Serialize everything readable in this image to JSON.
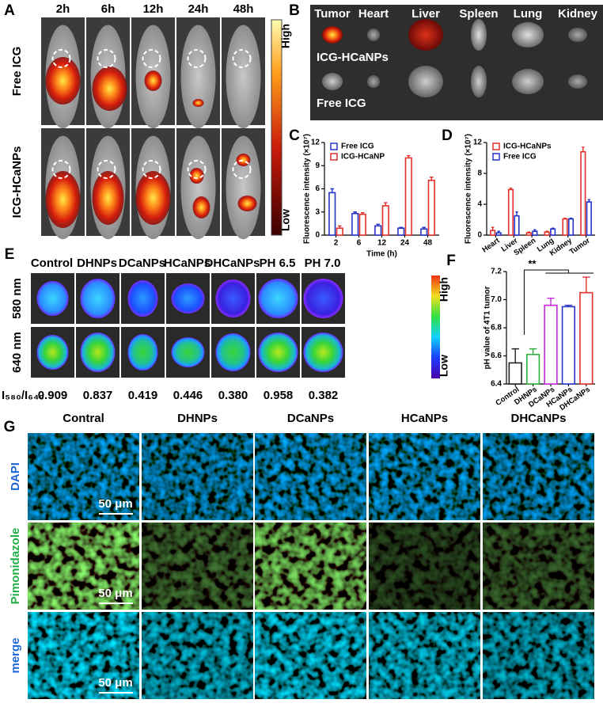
{
  "panel_labels": [
    "A",
    "B",
    "C",
    "D",
    "E",
    "F",
    "G"
  ],
  "panel_a": {
    "time_points": [
      "2h",
      "6h",
      "12h",
      "24h",
      "48h"
    ],
    "rows": [
      "Free ICG",
      "ICG-HCaNPs"
    ],
    "scale_high": "High",
    "scale_low": "Low"
  },
  "panel_b": {
    "organs": [
      "Tumor",
      "Heart",
      "Liver",
      "Spleen",
      "Lung",
      "Kidney"
    ],
    "rows": [
      "ICG-HCaNPs",
      "Free ICG"
    ]
  },
  "panel_e": {
    "groups": [
      "Control",
      "DHNPs",
      "DCaNPs",
      "HCaNPs",
      "DHCaNPs",
      "PH 6.5",
      "PH 7.0"
    ],
    "rows": [
      "580 nm",
      "640 nm"
    ],
    "ratio_label": "I₅₈₀/I₆₄₀",
    "ratios": [
      "0.909",
      "0.837",
      "0.419",
      "0.446",
      "0.380",
      "0.958",
      "0.382"
    ],
    "scale_high": "High",
    "scale_low": "Low"
  },
  "panel_g": {
    "groups": [
      "Contral",
      "DHNPs",
      "DCaNPs",
      "HCaNPs",
      "DHCaNPs"
    ],
    "rows": [
      "DAPI",
      "Pimonidazole",
      "merge"
    ],
    "scale_bar": "50 μm"
  },
  "chart_data": [
    {
      "type": "bar",
      "xlabel": "Time (h)",
      "ylabel": "Fluorescence intensity (×10⁷)",
      "categories": [
        "2",
        "6",
        "12",
        "24",
        "48"
      ],
      "series": [
        {
          "name": "Free ICG",
          "color": "#2633c9",
          "values": [
            5.5,
            2.8,
            1.2,
            0.9,
            0.8
          ],
          "errors": [
            0.5,
            0.2,
            0.2,
            0.1,
            0.2
          ]
        },
        {
          "name": "ICG-HCaNP",
          "color": "#e0312b",
          "values": [
            0.9,
            2.7,
            3.8,
            10.0,
            7.1
          ],
          "errors": [
            0.3,
            0.2,
            0.4,
            0.3,
            0.4
          ]
        }
      ],
      "ylim": [
        0,
        12
      ],
      "yticks": [
        0,
        3,
        6,
        9,
        12
      ],
      "legend": "upper left"
    },
    {
      "type": "bar",
      "ylabel": "Fluorescence intensity (×10⁷)",
      "categories": [
        "Heart",
        "Liver",
        "Spleen",
        "Lung",
        "Kidney",
        "Tumor"
      ],
      "series": [
        {
          "name": "ICG-HCaNPs",
          "color": "#e0312b",
          "values": [
            0.6,
            5.9,
            0.3,
            0.4,
            2.1,
            10.8
          ],
          "errors": [
            0.4,
            0.2,
            0.1,
            0.1,
            0.1,
            0.6
          ]
        },
        {
          "name": "Free ICG",
          "color": "#2633c9",
          "values": [
            0.3,
            2.5,
            0.5,
            0.8,
            2.1,
            4.3
          ],
          "errors": [
            0.2,
            0.5,
            0.2,
            0.1,
            0.1,
            0.3
          ]
        }
      ],
      "ylim": [
        0,
        12
      ],
      "yticks": [
        0,
        4,
        8,
        12
      ],
      "legend": "upper left"
    },
    {
      "type": "bar",
      "ylabel": "pH value of 4T1 tumor",
      "categories": [
        "Control",
        "DHNPs",
        "DCaNPs",
        "HCaNPs",
        "DHCaNPs"
      ],
      "values": [
        6.55,
        6.61,
        6.96,
        6.95,
        7.05
      ],
      "errors": [
        0.1,
        0.04,
        0.05,
        0.01,
        0.11
      ],
      "colors": [
        "#222222",
        "#2fae3c",
        "#c22ad6",
        "#2633c9",
        "#e0312b"
      ],
      "ylim": [
        6.4,
        7.2
      ],
      "yticks": [
        6.4,
        6.6,
        6.8,
        {
          "value": 7,
          "label": "7.0"
        },
        7.2
      ],
      "annotation": "**"
    }
  ]
}
